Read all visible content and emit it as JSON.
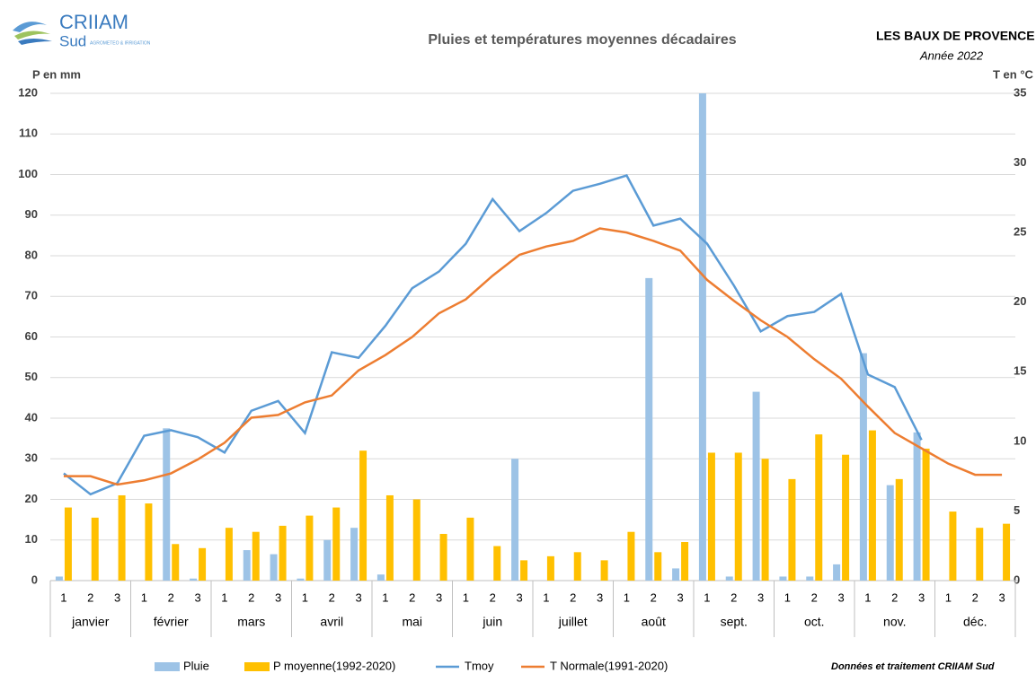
{
  "chart_data": {
    "type": "bar",
    "logo": {
      "name": "CRIIAM",
      "sub": "Sud",
      "tagline": "AGROMETEO & IRRIGATION"
    },
    "title": "Pluies et températures moyennes décadaires",
    "station": "LES BAUX DE PROVENCE",
    "year": "Année 2022",
    "y_label": "P en mm",
    "y2_label": "T en °C",
    "credit": "Données et traitement  CRIIAM Sud",
    "categories": [
      "1",
      "2",
      "3",
      "1",
      "2",
      "3",
      "1",
      "2",
      "3",
      "1",
      "2",
      "3",
      "1",
      "2",
      "3",
      "1",
      "2",
      "3",
      "1",
      "2",
      "3",
      "1",
      "2",
      "3",
      "1",
      "2",
      "3",
      "1",
      "2",
      "3",
      "1",
      "2",
      "3",
      "1",
      "2",
      "3"
    ],
    "months": [
      "janvier",
      "février",
      "mars",
      "avril",
      "mai",
      "juin",
      "juillet",
      "août",
      "sept.",
      "oct.",
      "nov.",
      "déc."
    ],
    "ylim": [
      0,
      120
    ],
    "yticks": [
      0,
      10,
      20,
      30,
      40,
      50,
      60,
      70,
      80,
      90,
      100,
      110,
      120
    ],
    "y2lim": [
      0,
      35
    ],
    "y2ticks": [
      0,
      5,
      10,
      15,
      20,
      25,
      30,
      35
    ],
    "grid": true,
    "legend": "bottom",
    "series": [
      {
        "name": "Pluie",
        "type": "bar",
        "color": "#9dc3e6",
        "values": [
          1,
          0,
          0,
          0,
          37.5,
          0.5,
          0,
          7.5,
          6.5,
          0.5,
          10,
          13,
          1.5,
          0,
          0,
          0,
          0,
          30,
          0,
          0,
          0,
          0,
          74.5,
          3,
          120,
          1,
          46.5,
          1,
          1,
          4,
          56,
          23.5,
          36.5,
          null,
          null,
          null
        ]
      },
      {
        "name": "P moyenne(1992-2020)",
        "type": "bar",
        "color": "#ffc000",
        "values": [
          18,
          15.5,
          21,
          19,
          9,
          8,
          13,
          12,
          13.5,
          16,
          18,
          32,
          21,
          20,
          11.5,
          15.5,
          8.5,
          5,
          6,
          7,
          5,
          12,
          7,
          9.5,
          31.5,
          31.5,
          30,
          25,
          36,
          31,
          37,
          25,
          32.5,
          17,
          13,
          14
        ]
      },
      {
        "name": "Tmoy",
        "type": "line",
        "axis": "y2",
        "color": "#5b9bd5",
        "values": [
          7.7,
          6.2,
          7.0,
          10.4,
          10.8,
          10.3,
          9.2,
          12.2,
          12.9,
          10.6,
          16.4,
          16.0,
          18.3,
          21.0,
          22.2,
          24.2,
          27.4,
          25.1,
          26.4,
          28.0,
          28.5,
          29.1,
          25.5,
          26.0,
          24.2,
          21.2,
          17.9,
          19.0,
          19.3,
          20.6,
          14.8,
          13.9,
          10.1,
          null,
          null,
          null
        ]
      },
      {
        "name": "T Normale(1991-2020)",
        "type": "line",
        "axis": "y2",
        "color": "#ed7d31",
        "values": [
          7.5,
          7.5,
          6.9,
          7.2,
          7.7,
          8.7,
          9.9,
          11.7,
          11.9,
          12.8,
          13.3,
          15.1,
          16.2,
          17.5,
          19.2,
          20.2,
          21.9,
          23.4,
          24.0,
          24.4,
          25.3,
          25.0,
          24.4,
          23.7,
          21.6,
          20.1,
          18.7,
          17.5,
          15.9,
          14.5,
          12.5,
          10.6,
          9.5,
          8.4,
          7.6,
          7.6
        ]
      }
    ]
  }
}
